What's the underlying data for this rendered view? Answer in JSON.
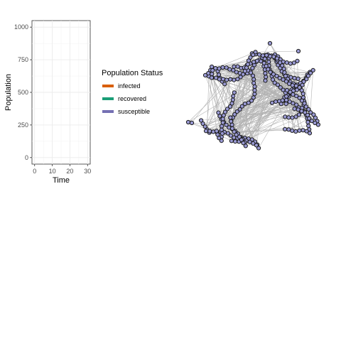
{
  "chart_data": [
    {
      "type": "line",
      "title": "",
      "xlabel": "Time",
      "ylabel": "Population",
      "xlim": [
        -1.5,
        31.5
      ],
      "ylim": [
        -50,
        1050
      ],
      "x_ticks": [
        0,
        10,
        20,
        30
      ],
      "y_ticks": [
        0,
        250,
        500,
        750,
        1000
      ],
      "grid": true,
      "legend_position": "right",
      "legend": {
        "title": "Population Status",
        "items": [
          {
            "label": "infected",
            "color": "#d95f02"
          },
          {
            "label": "recovered",
            "color": "#1b9e77"
          },
          {
            "label": "susceptible",
            "color": "#7570b3"
          }
        ]
      },
      "series": [
        {
          "name": "infected",
          "color": "#d95f02",
          "x": [],
          "values": []
        },
        {
          "name": "recovered",
          "color": "#1b9e77",
          "x": [],
          "values": []
        },
        {
          "name": "susceptible",
          "color": "#7570b3",
          "x": [],
          "values": []
        }
      ]
    },
    {
      "type": "network",
      "title": "",
      "node_fill": "#9a9ad4",
      "node_stroke": "#1a1a1a",
      "edge_color": "#b3b3b3",
      "node_status": "susceptible"
    }
  ]
}
